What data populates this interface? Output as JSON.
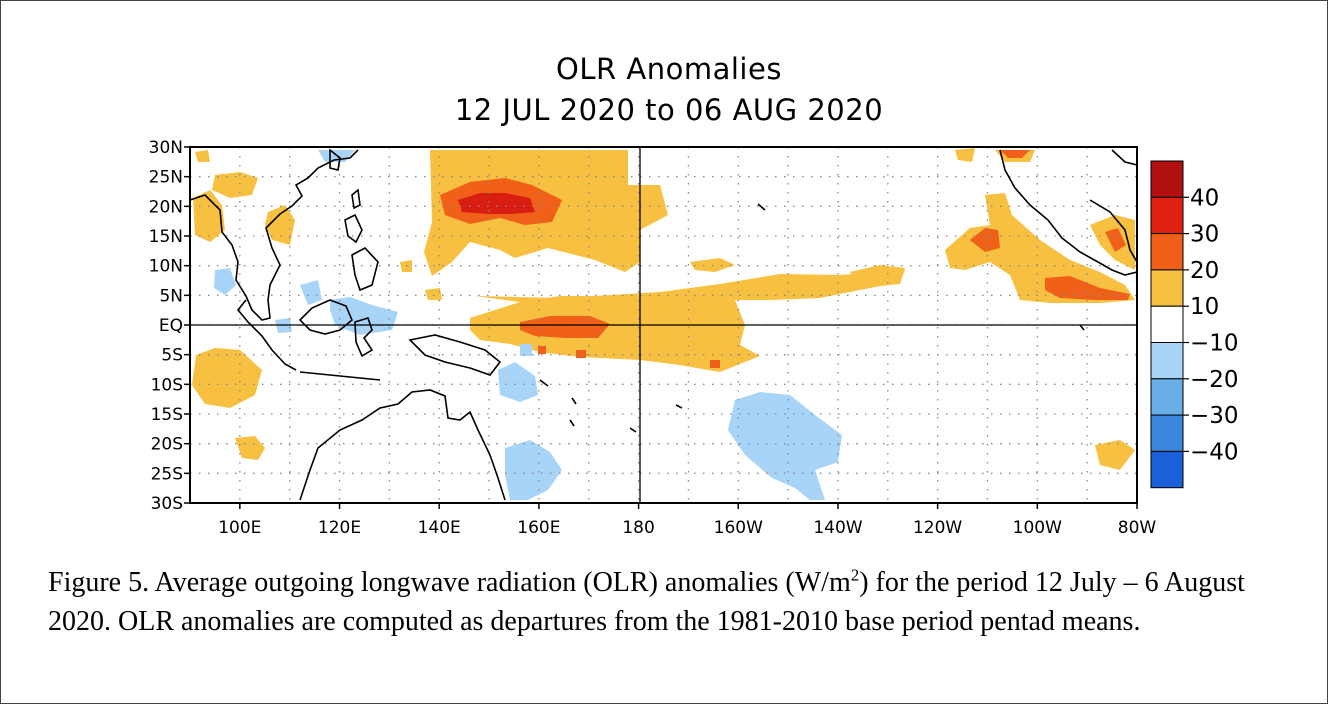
{
  "title": {
    "line1": "OLR Anomalies",
    "line2": "12 JUL 2020 to 06 AUG 2020"
  },
  "map": {
    "lat_labels": [
      "30N",
      "25N",
      "20N",
      "15N",
      "10N",
      "5N",
      "EQ",
      "5S",
      "10S",
      "15S",
      "20S",
      "25S",
      "30S"
    ],
    "lon_labels": [
      "100E",
      "120E",
      "140E",
      "160E",
      "180",
      "160W",
      "140W",
      "120W",
      "100W",
      "80W"
    ],
    "lat_range": [
      -30,
      30
    ],
    "lon_range_deg_east": [
      90,
      280
    ],
    "reference_lines": [
      "EQ",
      "180"
    ],
    "grid": "dotted"
  },
  "legend": {
    "labels": [
      "40",
      "30",
      "20",
      "10",
      "−10",
      "−20",
      "−30",
      "−40"
    ],
    "colors": [
      "#b01010",
      "#e02010",
      "#f06018",
      "#f8c040",
      "#ffffff",
      "#a8d4f8",
      "#6aaee8",
      "#3a86de",
      "#1a60d8"
    ],
    "units": "W/m2"
  },
  "caption": {
    "prefix": "Figure 5. Average outgoing longwave radiation (OLR) anomalies (W/m",
    "sup": "2",
    "suffix": ") for the period 12 July – 6 August 2020.  OLR anomalies are computed as departures from the 1981-2010 base period pentad means."
  }
}
